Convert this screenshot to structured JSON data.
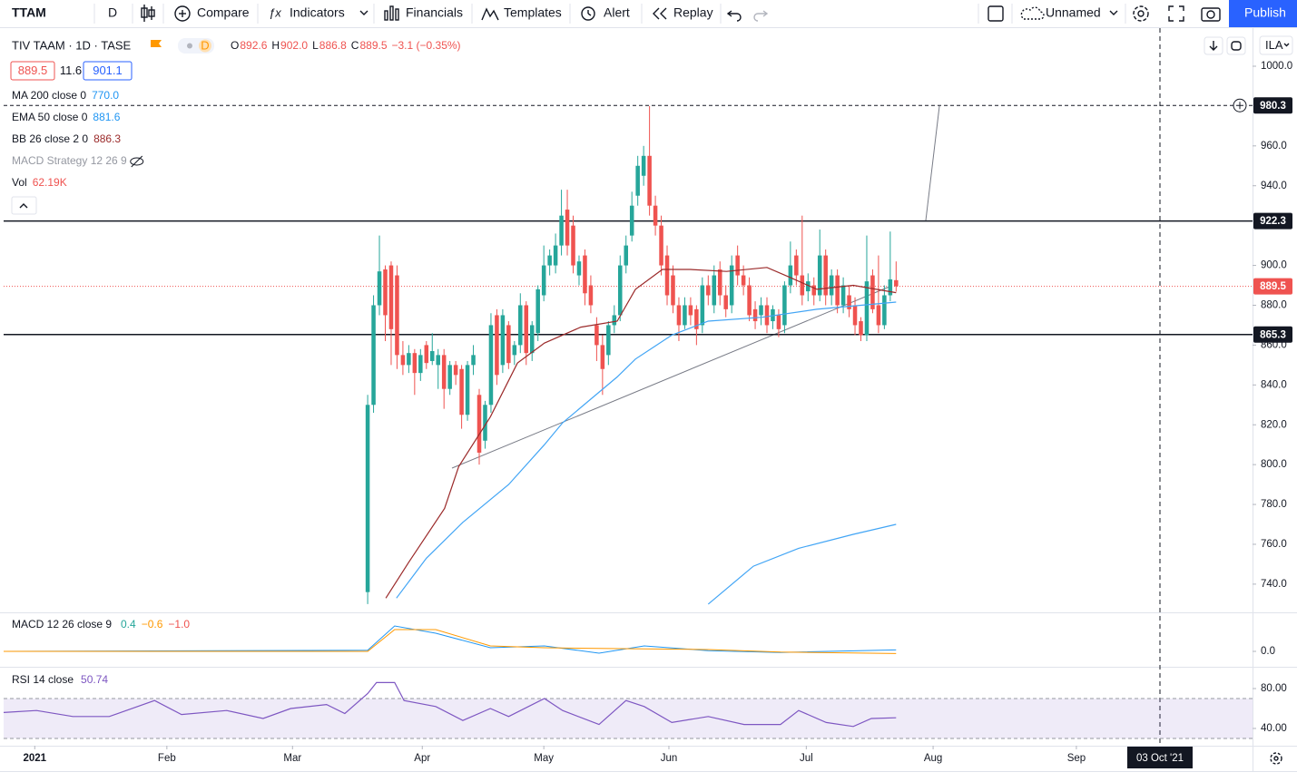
{
  "toolbar": {
    "symbol": "TTAM",
    "interval": "D",
    "compare": "Compare",
    "indicators": "Indicators",
    "financials": "Financials",
    "templates": "Templates",
    "alert": "Alert",
    "replay": "Replay",
    "layout_name": "Unnamed",
    "publish": "Publish"
  },
  "legend": {
    "name": "TIV TAAM · 1D · TASE",
    "badge": "D",
    "ohlc": [
      {
        "label": "O",
        "value": "892.6"
      },
      {
        "label": "H",
        "value": "902.0"
      },
      {
        "label": "L",
        "value": "886.8"
      },
      {
        "label": "C",
        "value": "889.5"
      }
    ],
    "change": "−3.1 (−0.35%)",
    "bid": "889.5",
    "spread": "11.6",
    "ask": "901.1",
    "indicators": [
      {
        "name": "MA 200 close 0",
        "value": "770.0"
      },
      {
        "name": "EMA 50 close 0",
        "value": "881.6"
      },
      {
        "name": "BB 26 close 2 0",
        "value": "886.3"
      },
      {
        "name": "MACD Strategy 12 26 9"
      },
      {
        "name": "Vol",
        "value": "62.19K"
      }
    ]
  },
  "currency": "ILA",
  "crosshair_label": "03 Oct '21",
  "chart_data": [
    {
      "type": "candlestick",
      "up_color": "#26a69a",
      "down_color": "#ef5350",
      "xlim": [
        -62,
        150.7
      ],
      "ylim": [
        727.2,
        1017.3
      ],
      "xticks": [
        {
          "value": -56.7,
          "label": "2021"
        },
        {
          "value": -34.2,
          "label": "Feb"
        },
        {
          "value": -12.8,
          "label": "Mar"
        },
        {
          "value": 9.3,
          "label": "Apr"
        },
        {
          "value": 30.0,
          "label": "May"
        },
        {
          "value": 51.3,
          "label": "Jun"
        },
        {
          "value": 74.7,
          "label": "Jul"
        },
        {
          "value": 96.3,
          "label": "Aug"
        },
        {
          "value": 120.7,
          "label": "Sep"
        }
      ],
      "yticks": [
        {
          "value": 1000,
          "label": "1000.0"
        },
        {
          "value": 960,
          "label": "960.0"
        },
        {
          "value": 940,
          "label": "940.0"
        },
        {
          "value": 900,
          "label": "900.0"
        },
        {
          "value": 880,
          "label": "880.0"
        },
        {
          "value": 860,
          "label": "860.0"
        },
        {
          "value": 840,
          "label": "840.0"
        },
        {
          "value": 820,
          "label": "820.0"
        },
        {
          "value": 800,
          "label": "800.0"
        },
        {
          "value": 780,
          "label": "780.0"
        },
        {
          "value": 760,
          "label": "760.0"
        },
        {
          "value": 740,
          "label": "740.0"
        }
      ],
      "ohlc": [
        [
          736,
          835,
          730,
          830
        ],
        [
          830,
          885,
          826,
          880
        ],
        [
          880,
          915,
          875,
          897
        ],
        [
          898,
          900,
          862,
          875
        ],
        [
          900,
          902,
          850,
          868
        ],
        [
          895,
          900,
          848,
          855
        ],
        [
          855,
          862,
          845,
          850
        ],
        [
          850,
          860,
          846,
          856
        ],
        [
          856,
          858,
          835,
          846
        ],
        [
          846,
          858,
          842,
          855
        ],
        [
          860,
          862,
          848,
          851
        ],
        [
          852,
          866,
          850,
          857
        ],
        [
          850,
          858,
          838,
          855
        ],
        [
          855,
          858,
          828,
          838
        ],
        [
          838,
          852,
          835,
          850
        ],
        [
          850,
          852,
          840,
          845
        ],
        [
          848,
          850,
          818,
          825
        ],
        [
          825,
          852,
          822,
          850
        ],
        [
          850,
          860,
          845,
          855
        ],
        [
          835,
          838,
          800,
          806
        ],
        [
          812,
          832,
          808,
          830
        ],
        [
          830,
          876,
          826,
          870
        ],
        [
          875,
          878,
          840,
          845
        ],
        [
          850,
          878,
          846,
          875
        ],
        [
          870,
          872,
          848,
          851
        ],
        [
          855,
          862,
          850,
          860
        ],
        [
          860,
          886,
          856,
          880
        ],
        [
          880,
          882,
          850,
          856
        ],
        [
          856,
          872,
          852,
          870
        ],
        [
          866,
          890,
          862,
          888
        ],
        [
          885,
          910,
          882,
          900
        ],
        [
          900,
          908,
          895,
          905
        ],
        [
          900,
          916,
          896,
          910
        ],
        [
          910,
          938,
          905,
          925
        ],
        [
          928,
          938,
          905,
          910
        ],
        [
          920,
          925,
          896,
          900
        ],
        [
          895,
          905,
          890,
          902
        ],
        [
          905,
          908,
          880,
          886
        ],
        [
          890,
          895,
          876,
          880
        ],
        [
          870,
          874,
          852,
          860
        ],
        [
          860,
          865,
          835,
          848
        ],
        [
          855,
          872,
          850,
          870
        ],
        [
          870,
          880,
          866,
          875
        ],
        [
          875,
          905,
          872,
          900
        ],
        [
          900,
          915,
          896,
          910
        ],
        [
          915,
          937,
          912,
          930
        ],
        [
          935,
          955,
          930,
          950
        ],
        [
          945,
          960,
          940,
          955
        ],
        [
          955,
          980,
          925,
          930
        ],
        [
          930,
          935,
          915,
          920
        ],
        [
          920,
          925,
          895,
          900
        ],
        [
          905,
          910,
          880,
          885
        ],
        [
          895,
          900,
          876,
          880
        ],
        [
          880,
          884,
          862,
          870
        ],
        [
          870,
          884,
          868,
          880
        ],
        [
          880,
          884,
          870,
          875
        ],
        [
          878,
          880,
          860,
          868
        ],
        [
          870,
          894,
          866,
          890
        ],
        [
          890,
          895,
          880,
          885
        ],
        [
          880,
          900,
          876,
          895
        ],
        [
          898,
          902,
          880,
          885
        ],
        [
          885,
          890,
          874,
          878
        ],
        [
          880,
          905,
          876,
          900
        ],
        [
          905,
          910,
          890,
          895
        ],
        [
          895,
          900,
          885,
          890
        ],
        [
          890,
          894,
          872,
          875
        ],
        [
          878,
          882,
          868,
          872
        ],
        [
          875,
          884,
          870,
          880
        ],
        [
          880,
          884,
          866,
          870
        ],
        [
          872,
          880,
          868,
          878
        ],
        [
          875,
          878,
          864,
          868
        ],
        [
          870,
          892,
          866,
          890
        ],
        [
          890,
          912,
          886,
          900
        ],
        [
          905,
          908,
          890,
          895
        ],
        [
          895,
          925,
          880,
          885
        ],
        [
          887,
          896,
          882,
          892
        ],
        [
          890,
          894,
          880,
          885
        ],
        [
          885,
          918,
          882,
          905
        ],
        [
          905,
          908,
          880,
          885
        ],
        [
          885,
          898,
          880,
          895
        ],
        [
          895,
          898,
          876,
          880
        ],
        [
          880,
          894,
          876,
          890
        ],
        [
          885,
          890,
          874,
          878
        ],
        [
          880,
          884,
          865,
          870
        ],
        [
          872,
          874,
          862,
          865
        ],
        [
          865,
          915,
          862,
          892
        ],
        [
          895,
          898,
          876,
          878
        ],
        [
          880,
          905,
          866,
          870
        ],
        [
          870,
          890,
          868,
          885
        ],
        [
          885,
          917,
          882,
          893
        ],
        [
          892.6,
          902.0,
          886.8,
          889.5
        ]
      ],
      "series": [
        {
          "name": "MA 200 close 0",
          "color": "#42a5f5",
          "x": [
            58.0,
            65.7,
            73.4,
            82.7,
            90
          ],
          "values": [
            730,
            749,
            758,
            765,
            770
          ]
        },
        {
          "name": "EMA 50 close 0",
          "color": "#42a5f5",
          "x": [
            4.9,
            10.0,
            16.2,
            24.0,
            30.1,
            33.2,
            42.5,
            45.6,
            51.8,
            58.0,
            67.2,
            76.5,
            90
          ],
          "values": [
            733,
            753,
            771,
            790,
            810,
            821,
            844,
            853,
            865,
            872,
            874,
            878,
            881.6
          ]
        },
        {
          "name": "BB 26 close 2 0",
          "color": "#9b2a2a",
          "x": [
            3.1,
            7.0,
            13.1,
            15.5,
            20.9,
            25.5,
            30.1,
            36.3,
            42.5,
            45.6,
            50.2,
            54.9,
            61.1,
            68.0,
            71.9,
            76.5,
            82.7,
            90
          ],
          "values": [
            733,
            751,
            778,
            799,
            824,
            851,
            861,
            869,
            872,
            888,
            898,
            898,
            897,
            899,
            894,
            888,
            890,
            886.3
          ]
        }
      ],
      "price_lines": [
        {
          "value": 980.3,
          "style": "dashed",
          "color": "#131722"
        },
        {
          "value": 922.3,
          "style": "solid",
          "color": "#131722"
        },
        {
          "value": 889.5,
          "style": "dotted",
          "color": "#ef5350"
        },
        {
          "value": 865.3,
          "style": "solid",
          "color": "#131722"
        }
      ]
    },
    {
      "type": "line",
      "title": "MACD 12 26 close 9",
      "ylim": [
        -4,
        10.5
      ],
      "yticks": [
        {
          "value": 0,
          "label": "0.0"
        }
      ],
      "value_labels": [
        {
          "text": "0.4",
          "color": "#26a69a"
        },
        {
          "text": "−0.6",
          "color": "#ff9800"
        },
        {
          "text": "−1.0",
          "color": "#ef5350"
        }
      ],
      "series": [
        {
          "color": "#2196f3",
          "x": [
            -62,
            0,
            4.6,
            11.6,
            20.9,
            30.1,
            39.4,
            47.1,
            58.0,
            70.3,
            90
          ],
          "values": [
            0,
            0.3,
            7,
            5,
            1,
            1.5,
            -0.5,
            1.5,
            0.2,
            -0.3,
            0.4
          ]
        },
        {
          "color": "#ff9800",
          "x": [
            -62,
            0,
            4.6,
            11.6,
            20.9,
            30.1,
            39.4,
            47.1,
            58.0,
            70.3,
            90
          ],
          "values": [
            0,
            0,
            6,
            6,
            1.5,
            1,
            0.8,
            0.7,
            0.5,
            -0.2,
            -0.6
          ]
        }
      ]
    },
    {
      "type": "line",
      "title": "RSI 14 close",
      "value_label": "50.74",
      "color": "#7e57c2",
      "band": [
        30,
        70
      ],
      "ylim": [
        22.7,
        99.1
      ],
      "yticks": [
        {
          "value": 80,
          "label": "80.00"
        },
        {
          "value": 40,
          "label": "40.00"
        }
      ],
      "x": [
        -62,
        -56.4,
        -50.2,
        -44.0,
        -36.3,
        -31.7,
        -24.0,
        -17.8,
        -13.1,
        -7.0,
        -3.9,
        0,
        1.5,
        4.6,
        6.2,
        11.6,
        16.2,
        20.9,
        24.0,
        30.1,
        33.2,
        39.4,
        44.0,
        47.1,
        51.8,
        58.0,
        64.1,
        70.3,
        73.4,
        78.1,
        82.7,
        85.8,
        90
      ],
      "values": [
        56,
        58,
        52,
        52,
        68,
        54,
        58,
        50,
        60,
        64,
        55,
        75,
        86,
        86,
        68,
        62,
        48,
        60,
        52,
        70,
        58,
        44,
        68,
        62,
        46,
        52,
        44,
        44,
        58,
        46,
        42,
        50,
        50.74
      ]
    }
  ]
}
